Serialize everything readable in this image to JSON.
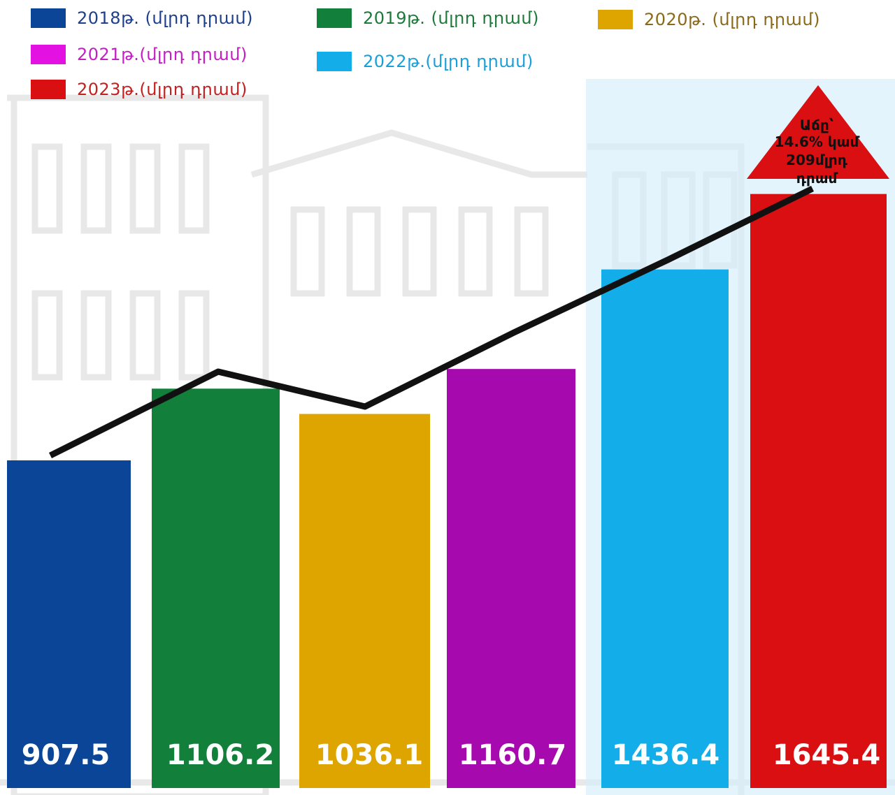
{
  "chart_data": {
    "type": "bar",
    "categories": [
      "2018",
      "2019",
      "2020",
      "2021",
      "2022",
      "2023"
    ],
    "values": [
      907.5,
      1106.2,
      1036.1,
      1160.7,
      1436.4,
      1645.4
    ],
    "value_labels": [
      "907.5",
      "1106.2",
      "1036.1",
      "1160.7",
      "1436.4",
      "1645.4"
    ],
    "colors": [
      "#0a4597",
      "#12803a",
      "#dea400",
      "#a60aae",
      "#13aeea",
      "#d90f12"
    ],
    "legend": [
      {
        "label": "2018թ. (մլրդ դրամ)",
        "color": "#0a4597",
        "text_color": "#1e3f8c"
      },
      {
        "label": "2019թ. (մլրդ դրամ)",
        "color": "#12803a",
        "text_color": "#1d7a3a"
      },
      {
        "label": "2020թ. (մլրդ դրամ)",
        "color": "#dea400",
        "text_color": "#8a6a1a"
      },
      {
        "label": "2021թ.(մլրդ դրամ)",
        "color": "#e312e3",
        "text_color": "#c41fc4"
      },
      {
        "label": "2022թ.(մլրդ դրամ)",
        "color": "#13aeea",
        "text_color": "#1a9fd8"
      },
      {
        "label": "2023թ.(մլրդ դրամ)",
        "color": "#d90f12",
        "text_color": "#c42020"
      }
    ],
    "trend_line": true,
    "annotation": {
      "lines": [
        "Աճը՝",
        "14.6% կամ",
        "209մլրդ",
        "դրամ"
      ],
      "color": "#d90f12",
      "text_color": "#111111"
    },
    "legend_placement": "top",
    "grid": false
  }
}
